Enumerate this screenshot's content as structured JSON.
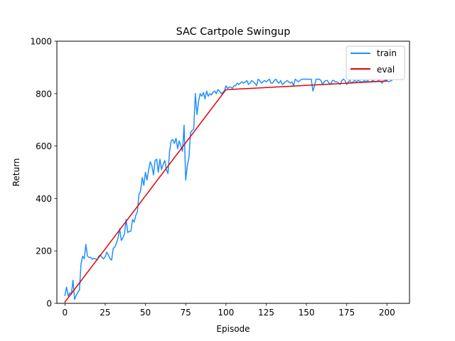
{
  "chart_data": {
    "type": "line",
    "title": "SAC Cartpole Swingup",
    "xlabel": "Episode",
    "ylabel": "Return",
    "xlim": [
      -5,
      214
    ],
    "ylim": [
      0,
      1000
    ],
    "x_ticks": [
      0,
      25,
      50,
      75,
      100,
      125,
      150,
      175,
      200
    ],
    "y_ticks": [
      0,
      200,
      400,
      600,
      800,
      1000
    ],
    "grid": false,
    "legend_position": "top-right",
    "series": [
      {
        "name": "train",
        "color": "#1e90ff",
        "x": [
          0,
          1,
          2,
          3,
          4,
          5,
          6,
          7,
          8,
          9,
          10,
          11,
          12,
          13,
          14,
          15,
          16,
          17,
          18,
          19,
          20,
          21,
          22,
          23,
          24,
          25,
          26,
          27,
          28,
          29,
          30,
          31,
          32,
          33,
          34,
          35,
          36,
          37,
          38,
          39,
          40,
          41,
          42,
          43,
          44,
          45,
          46,
          47,
          48,
          49,
          50,
          51,
          52,
          53,
          54,
          55,
          56,
          57,
          58,
          59,
          60,
          61,
          62,
          63,
          64,
          65,
          66,
          67,
          68,
          69,
          70,
          71,
          72,
          73,
          74,
          75,
          76,
          77,
          78,
          79,
          80,
          81,
          82,
          83,
          84,
          85,
          86,
          87,
          88,
          89,
          90,
          91,
          92,
          93,
          94,
          95,
          96,
          97,
          98,
          99,
          100,
          101,
          102,
          103,
          104,
          105,
          106,
          107,
          108,
          109,
          110,
          111,
          112,
          113,
          114,
          115,
          116,
          117,
          118,
          119,
          120,
          121,
          122,
          123,
          124,
          125,
          126,
          127,
          128,
          129,
          130,
          131,
          132,
          133,
          134,
          135,
          136,
          137,
          138,
          139,
          140,
          141,
          142,
          143,
          144,
          145,
          146,
          147,
          148,
          149,
          150,
          151,
          152,
          153,
          154,
          155,
          156,
          157,
          158,
          159,
          160,
          161,
          162,
          163,
          164,
          165,
          166,
          167,
          168,
          169,
          170,
          171,
          172,
          173,
          174,
          175,
          176,
          177,
          178,
          179,
          180,
          181,
          182,
          183,
          184,
          185,
          186,
          187,
          188,
          189,
          190,
          191,
          192,
          193,
          194,
          195,
          196,
          197,
          198,
          199,
          200,
          201,
          202,
          203
        ],
        "values": [
          30,
          62,
          28,
          40,
          35,
          88,
          15,
          30,
          42,
          50,
          150,
          180,
          170,
          225,
          180,
          175,
          175,
          168,
          172,
          170,
          165,
          180,
          185,
          175,
          170,
          178,
          195,
          185,
          170,
          165,
          210,
          215,
          230,
          250,
          285,
          240,
          250,
          265,
          320,
          270,
          275,
          275,
          320,
          310,
          335,
          350,
          415,
          430,
          480,
          450,
          500,
          470,
          510,
          540,
          525,
          490,
          545,
          550,
          500,
          550,
          510,
          530,
          545,
          510,
          495,
          580,
          620,
          625,
          610,
          630,
          590,
          620,
          600,
          580,
          680,
          470,
          525,
          555,
          650,
          660,
          665,
          800,
          720,
          770,
          800,
          790,
          805,
          780,
          810,
          790,
          800,
          795,
          805,
          810,
          800,
          815,
          810,
          800,
          805,
          810,
          830,
          820,
          825,
          825,
          820,
          830,
          830,
          840,
          835,
          840,
          845,
          840,
          845,
          850,
          835,
          840,
          850,
          845,
          840,
          830,
          855,
          850,
          840,
          845,
          850,
          845,
          850,
          855,
          840,
          840,
          850,
          855,
          845,
          840,
          850,
          835,
          840,
          845,
          850,
          845,
          840,
          845,
          830,
          855,
          850,
          845,
          850,
          855,
          855,
          855,
          855,
          855,
          855,
          855,
          810,
          830,
          855,
          855,
          855,
          850,
          835,
          845,
          850,
          850,
          840,
          835,
          850,
          850,
          845,
          845,
          840,
          835,
          850,
          855,
          850,
          835,
          845,
          850,
          840,
          845,
          850,
          845,
          850,
          848,
          845,
          845,
          850,
          845,
          850,
          845,
          845,
          850,
          848,
          845,
          848,
          850,
          845,
          840,
          848,
          852,
          850,
          845,
          848,
          850
        ]
      },
      {
        "name": "eval",
        "color": "#e80000",
        "x": [
          0,
          100,
          200
        ],
        "values": [
          5,
          815,
          848
        ]
      }
    ]
  }
}
